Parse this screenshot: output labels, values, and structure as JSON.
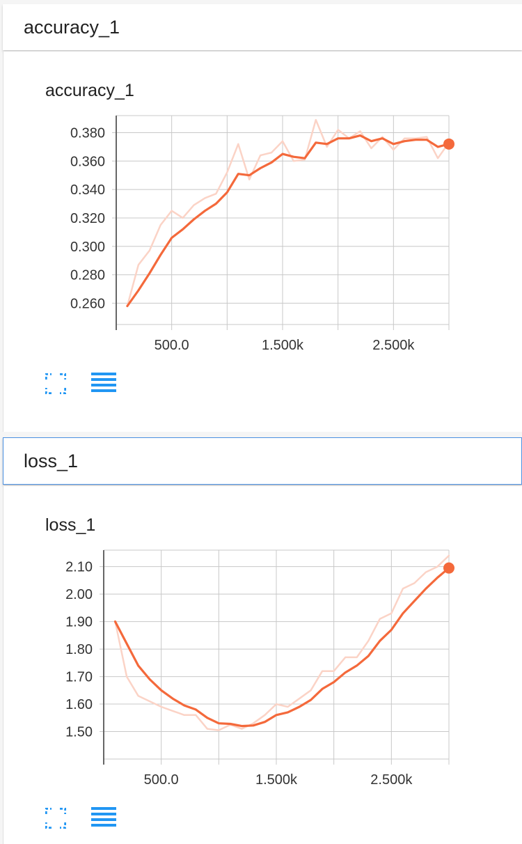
{
  "sections": {
    "accuracy": {
      "header": "accuracy_1",
      "title": "accuracy_1"
    },
    "loss": {
      "header": "loss_1",
      "title": "loss_1"
    }
  },
  "icons": {
    "expand": "fullscreen-icon",
    "data": "data-table-icon"
  },
  "colors": {
    "line": "#f4693b",
    "raw_line": "#fbd3c6",
    "grid": "#c8c8c8",
    "icon": "#2196f3"
  },
  "chart_data": [
    {
      "type": "line",
      "title": "accuracy_1",
      "xlim": [
        0,
        3000
      ],
      "ylim": [
        0.245,
        0.392
      ],
      "xticks": [
        500,
        1500,
        2500
      ],
      "xtick_labels": [
        "500.0",
        "1.500k",
        "2.500k"
      ],
      "yticks": [
        0.26,
        0.28,
        0.3,
        0.32,
        0.34,
        0.36,
        0.38
      ],
      "ytick_labels": [
        "0.260",
        "0.280",
        "0.300",
        "0.320",
        "0.340",
        "0.360",
        "0.380"
      ],
      "grid": true,
      "series": [
        {
          "style": "smoothed",
          "x": [
            100,
            200,
            300,
            400,
            500,
            600,
            700,
            800,
            900,
            1000,
            1100,
            1200,
            1300,
            1400,
            1500,
            1600,
            1700,
            1800,
            1900,
            2000,
            2100,
            2200,
            2300,
            2400,
            2500,
            2600,
            2700,
            2800,
            2900,
            3000
          ],
          "y": [
            0.258,
            0.269,
            0.281,
            0.294,
            0.306,
            0.312,
            0.319,
            0.325,
            0.33,
            0.338,
            0.351,
            0.35,
            0.355,
            0.359,
            0.365,
            0.363,
            0.362,
            0.373,
            0.372,
            0.376,
            0.376,
            0.378,
            0.374,
            0.376,
            0.372,
            0.374,
            0.375,
            0.375,
            0.37,
            0.372
          ]
        },
        {
          "style": "raw",
          "x": [
            100,
            200,
            300,
            400,
            500,
            600,
            700,
            800,
            900,
            1000,
            1100,
            1200,
            1300,
            1400,
            1500,
            1600,
            1700,
            1800,
            1900,
            2000,
            2100,
            2200,
            2300,
            2400,
            2500,
            2600,
            2700,
            2800,
            2900,
            3000
          ],
          "y": [
            0.258,
            0.287,
            0.297,
            0.315,
            0.325,
            0.32,
            0.329,
            0.334,
            0.337,
            0.352,
            0.372,
            0.347,
            0.364,
            0.366,
            0.374,
            0.36,
            0.361,
            0.389,
            0.37,
            0.382,
            0.376,
            0.381,
            0.369,
            0.377,
            0.368,
            0.376,
            0.376,
            0.377,
            0.362,
            0.373
          ]
        }
      ]
    },
    {
      "type": "line",
      "title": "loss_1",
      "xlim": [
        0,
        3000
      ],
      "ylim": [
        1.4,
        2.16
      ],
      "xticks": [
        500,
        1500,
        2500
      ],
      "xtick_labels": [
        "500.0",
        "1.500k",
        "2.500k"
      ],
      "yticks": [
        1.5,
        1.6,
        1.7,
        1.8,
        1.9,
        2.0,
        2.1
      ],
      "ytick_labels": [
        "1.50",
        "1.60",
        "1.70",
        "1.80",
        "1.90",
        "2.00",
        "2.10"
      ],
      "grid": true,
      "series": [
        {
          "style": "smoothed",
          "x": [
            100,
            200,
            300,
            400,
            500,
            600,
            700,
            800,
            900,
            1000,
            1100,
            1200,
            1300,
            1400,
            1500,
            1600,
            1700,
            1800,
            1900,
            2000,
            2100,
            2200,
            2300,
            2400,
            2500,
            2600,
            2700,
            2800,
            2900,
            3000
          ],
          "y": [
            1.9,
            1.82,
            1.74,
            1.69,
            1.65,
            1.62,
            1.595,
            1.58,
            1.55,
            1.53,
            1.528,
            1.52,
            1.522,
            1.535,
            1.56,
            1.57,
            1.59,
            1.615,
            1.655,
            1.68,
            1.715,
            1.74,
            1.775,
            1.83,
            1.87,
            1.93,
            1.975,
            2.02,
            2.06,
            2.095
          ]
        },
        {
          "style": "raw",
          "x": [
            100,
            200,
            300,
            400,
            500,
            600,
            700,
            800,
            900,
            1000,
            1100,
            1200,
            1300,
            1400,
            1500,
            1600,
            1700,
            1800,
            1900,
            2000,
            2100,
            2200,
            2300,
            2400,
            2500,
            2600,
            2700,
            2800,
            2900,
            3000
          ],
          "y": [
            1.9,
            1.7,
            1.63,
            1.61,
            1.59,
            1.575,
            1.56,
            1.56,
            1.51,
            1.505,
            1.525,
            1.51,
            1.53,
            1.56,
            1.6,
            1.59,
            1.62,
            1.65,
            1.72,
            1.72,
            1.77,
            1.77,
            1.83,
            1.91,
            1.93,
            2.02,
            2.04,
            2.08,
            2.1,
            2.14
          ]
        }
      ]
    }
  ]
}
